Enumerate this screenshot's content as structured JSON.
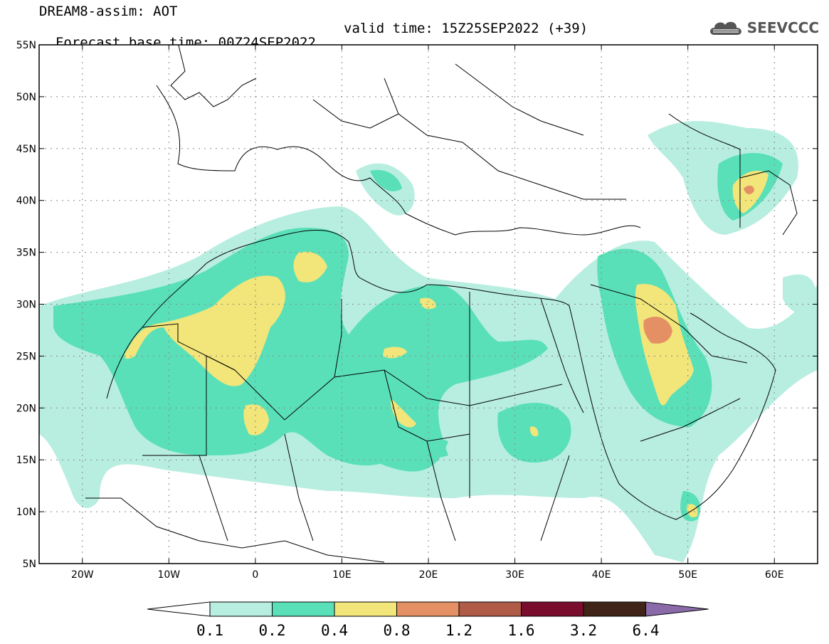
{
  "header": {
    "title": "DREAM8-assim: AOT",
    "base_time": "Forecast base time: 00Z24SEP2022",
    "valid_time": "valid time: 15Z25SEP2022 (+39)"
  },
  "logo": {
    "text": "SEEVCCC",
    "icon": "cloud-icon"
  },
  "map": {
    "lon_range": [
      -25,
      65
    ],
    "lat_range": [
      5,
      55
    ],
    "lat_ticks": [
      {
        "v": 55,
        "label": "55N"
      },
      {
        "v": 50,
        "label": "50N"
      },
      {
        "v": 45,
        "label": "45N"
      },
      {
        "v": 40,
        "label": "40N"
      },
      {
        "v": 35,
        "label": "35N"
      },
      {
        "v": 30,
        "label": "30N"
      },
      {
        "v": 25,
        "label": "25N"
      },
      {
        "v": 20,
        "label": "20N"
      },
      {
        "v": 15,
        "label": "15N"
      },
      {
        "v": 10,
        "label": "10N"
      },
      {
        "v": 5,
        "label": "5N"
      }
    ],
    "lon_ticks": [
      {
        "v": -20,
        "label": "20W"
      },
      {
        "v": -10,
        "label": "10W"
      },
      {
        "v": 0,
        "label": "0"
      },
      {
        "v": 10,
        "label": "10E"
      },
      {
        "v": 20,
        "label": "20E"
      },
      {
        "v": 30,
        "label": "30E"
      },
      {
        "v": 40,
        "label": "40E"
      },
      {
        "v": 50,
        "label": "50E"
      },
      {
        "v": 60,
        "label": "60E"
      }
    ],
    "grid": true
  },
  "colorbar": {
    "levels": [
      "0.1",
      "0.2",
      "0.4",
      "0.8",
      "1.2",
      "1.6",
      "3.2",
      "6.4"
    ],
    "colors": [
      "#ffffff",
      "#b8eee0",
      "#5ae0b8",
      "#f2e57a",
      "#e59064",
      "#b05a48",
      "#7a0d2e",
      "#402418",
      "#8a6aa8"
    ]
  },
  "colors": {
    "land": "#ffffff",
    "level_0_1": "#b8eee0",
    "level_0_2": "#5ae0b8",
    "level_0_4": "#f2e57a",
    "level_0_8": "#e59064",
    "border": "#000000"
  }
}
